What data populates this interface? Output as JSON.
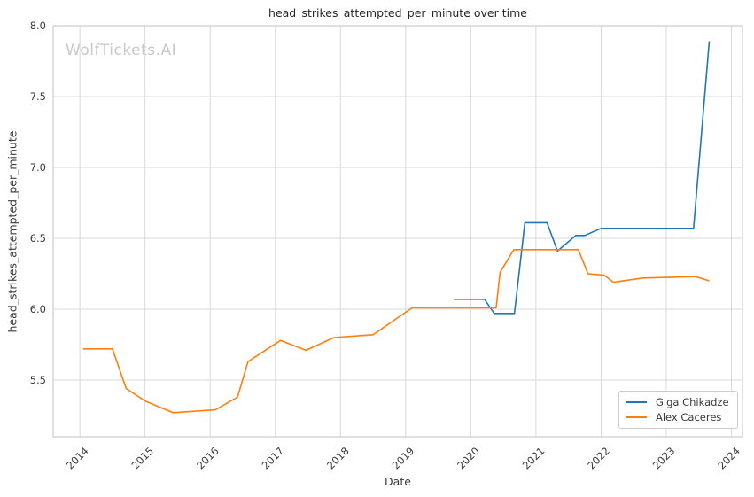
{
  "figure": {
    "watermark": "WolfTickets.AI"
  },
  "chart_data": {
    "type": "line",
    "title": "head_strikes_attempted_per_minute over time",
    "xlabel": "Date",
    "ylabel": "head_strikes_attempted_per_minute",
    "xlim": [
      2013.59,
      2024.17
    ],
    "ylim": [
      5.1,
      8.0
    ],
    "x_ticks": [
      2014,
      2015,
      2016,
      2017,
      2018,
      2019,
      2020,
      2021,
      2022,
      2023,
      2024
    ],
    "x_tick_labels": [
      "2014",
      "2015",
      "2016",
      "2017",
      "2018",
      "2019",
      "2020",
      "2021",
      "2022",
      "2023",
      "2024"
    ],
    "y_ticks": [
      5.5,
      6.0,
      6.5,
      7.0,
      7.5,
      8.0
    ],
    "y_tick_labels": [
      "5.5",
      "6.0",
      "6.5",
      "7.0",
      "7.5",
      "8.0"
    ],
    "grid": true,
    "legend_position": "lower right",
    "series": [
      {
        "name": "Giga Chikadze",
        "color": "#1f77b4",
        "points": [
          [
            2019.74,
            6.07
          ],
          [
            2020.21,
            6.07
          ],
          [
            2020.36,
            5.97
          ],
          [
            2020.67,
            5.97
          ],
          [
            2020.83,
            6.61
          ],
          [
            2021.17,
            6.61
          ],
          [
            2021.33,
            6.41
          ],
          [
            2021.61,
            6.52
          ],
          [
            2021.75,
            6.52
          ],
          [
            2022.0,
            6.57
          ],
          [
            2023.42,
            6.57
          ],
          [
            2023.66,
            7.89
          ]
        ]
      },
      {
        "name": "Alex Caceres",
        "color": "#ff7f0e",
        "points": [
          [
            2014.05,
            5.72
          ],
          [
            2014.5,
            5.72
          ],
          [
            2014.71,
            5.44
          ],
          [
            2015.01,
            5.35
          ],
          [
            2015.43,
            5.27
          ],
          [
            2016.08,
            5.29
          ],
          [
            2016.42,
            5.38
          ],
          [
            2016.58,
            5.63
          ],
          [
            2017.08,
            5.78
          ],
          [
            2017.47,
            5.71
          ],
          [
            2017.9,
            5.8
          ],
          [
            2018.5,
            5.82
          ],
          [
            2019.1,
            6.01
          ],
          [
            2020.39,
            6.01
          ],
          [
            2020.45,
            6.26
          ],
          [
            2020.66,
            6.42
          ],
          [
            2021.65,
            6.42
          ],
          [
            2021.8,
            6.25
          ],
          [
            2022.05,
            6.24
          ],
          [
            2022.19,
            6.19
          ],
          [
            2022.64,
            6.22
          ],
          [
            2023.45,
            6.23
          ],
          [
            2023.66,
            6.2
          ]
        ]
      }
    ],
    "style": {
      "grid_color": "#d9d9d9",
      "spine_color": "#cccccc",
      "tick_label_color": "#3b3b3b",
      "line_width": 1.6
    }
  }
}
